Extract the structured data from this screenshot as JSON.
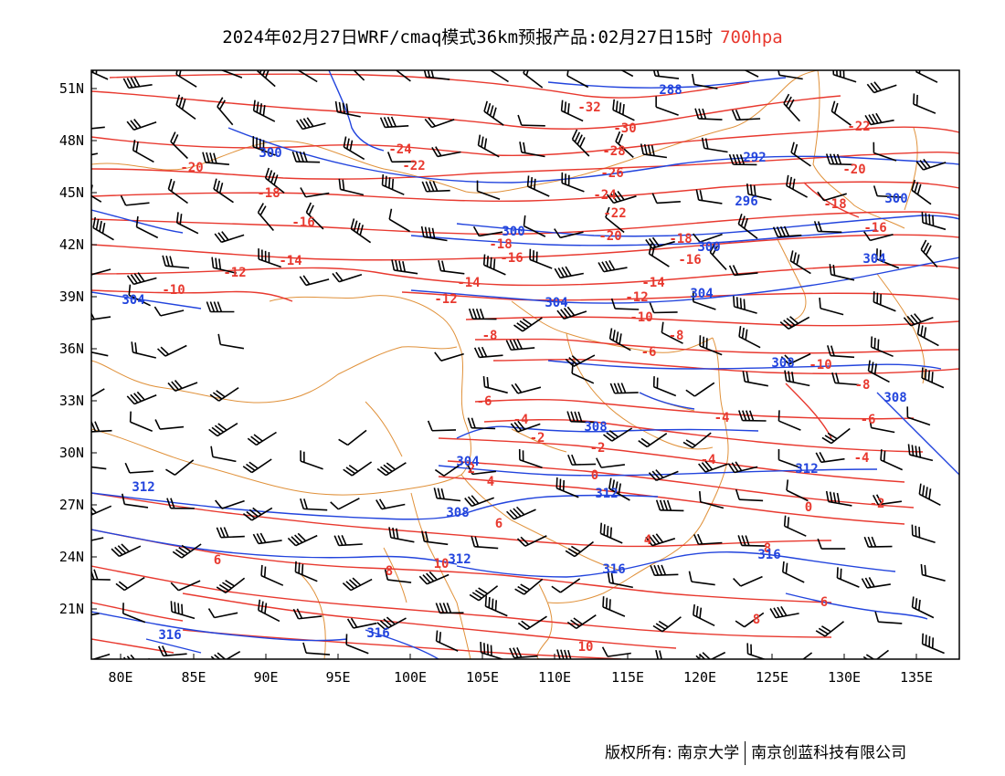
{
  "title": {
    "main": "2024年02月27日WRF/cmaq模式36km预报产品:02月27日15时",
    "level": "700hpa"
  },
  "axes": {
    "lon_labels": [
      "80E",
      "85E",
      "90E",
      "95E",
      "100E",
      "105E",
      "110E",
      "115E",
      "120E",
      "125E",
      "130E",
      "135E"
    ],
    "lat_labels": [
      "51N",
      "48N",
      "45N",
      "42N",
      "39N",
      "36N",
      "33N",
      "30N",
      "27N",
      "24N",
      "21N"
    ]
  },
  "colors": {
    "temperature": "#e8392f",
    "height": "#2244dd",
    "border": "#e0913a",
    "barb": "#000000"
  },
  "temperature_labels": [
    "-32",
    "-30",
    "-28",
    "-26",
    "-24",
    "-24",
    "-22",
    "-22",
    "-22",
    "-20",
    "-20",
    "-20",
    "-18",
    "-18",
    "-18",
    "-18",
    "-16",
    "-16",
    "-16",
    "-16",
    "-14",
    "-14",
    "-14",
    "-12",
    "-12",
    "-12",
    "-10",
    "-10",
    "-10",
    "-8",
    "-8",
    "-8",
    "-6",
    "-6",
    "-6",
    "-4",
    "-4",
    "-4",
    "-4",
    "-2",
    "-2",
    "-2",
    "0",
    "0",
    "2",
    "4",
    "4",
    "6",
    "6",
    "6",
    "8",
    "8",
    "8",
    "10",
    "10"
  ],
  "height_labels": [
    "288",
    "292",
    "296",
    "300",
    "300",
    "300",
    "300",
    "304",
    "304",
    "304",
    "304",
    "304",
    "308",
    "308",
    "308",
    "308",
    "312",
    "312",
    "312",
    "312",
    "316",
    "316",
    "316",
    "316"
  ],
  "footer": {
    "copyright": "版权所有: 南京大学",
    "company": "南京创蓝科技有限公司"
  }
}
